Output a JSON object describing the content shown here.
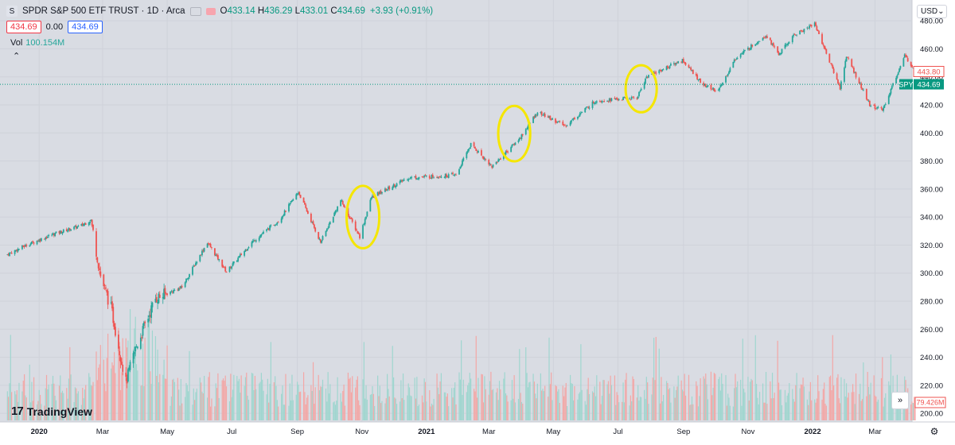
{
  "header": {
    "symbol_icon": "S",
    "title": "SPDR S&P 500 ETF TRUST · 1D · Arca",
    "open_label": "O",
    "open": "433.14",
    "high_label": "H",
    "high": "436.29",
    "low_label": "L",
    "low": "433.01",
    "close_label": "C",
    "close": "434.69",
    "change": "+3.93 (+0.91%)",
    "bid": "434.69",
    "spread": "0.00",
    "ask": "434.69",
    "collapse_icon": "chevron-up-icon"
  },
  "volume": {
    "label": "Vol",
    "value": "100.154M"
  },
  "currency": {
    "label": "USD"
  },
  "branding": {
    "name": "TradingView"
  },
  "controls": {
    "scroll_icon": "double-chevron-right-icon",
    "settings_icon": "gear-icon"
  },
  "colors": {
    "up": "#26a69a",
    "down": "#ef5350",
    "highlight": "#f5e600",
    "background": "#d9dce3",
    "last_price": "#089981"
  },
  "chart_data": {
    "type": "candlestick",
    "symbol": "SPY",
    "interval": "1D",
    "ylim": [
      195,
      488
    ],
    "y_ticks": [
      200,
      220,
      240,
      260,
      280,
      300,
      320,
      340,
      360,
      380,
      400,
      420,
      440,
      460,
      480
    ],
    "x_tick_labels": [
      "2020",
      "Mar",
      "May",
      "Jul",
      "Sep",
      "Nov",
      "2021",
      "Mar",
      "May",
      "Jul",
      "Sep",
      "Nov",
      "2022",
      "Mar"
    ],
    "x_tick_dates": [
      "2020-01-01",
      "2020-03-01",
      "2020-05-01",
      "2020-07-01",
      "2020-09-01",
      "2020-11-01",
      "2021-01-01",
      "2021-03-01",
      "2021-05-01",
      "2021-07-01",
      "2021-09-01",
      "2021-11-01",
      "2022-01-01",
      "2022-03-01"
    ],
    "date_range": [
      "2019-12-01",
      "2022-04-08"
    ],
    "price_path": [
      {
        "date": "2019-12-01",
        "price": 313
      },
      {
        "date": "2019-12-20",
        "price": 320
      },
      {
        "date": "2020-01-15",
        "price": 328
      },
      {
        "date": "2020-02-10",
        "price": 334
      },
      {
        "date": "2020-02-19",
        "price": 338
      },
      {
        "date": "2020-02-28",
        "price": 298
      },
      {
        "date": "2020-03-09",
        "price": 275
      },
      {
        "date": "2020-03-23",
        "price": 222
      },
      {
        "date": "2020-04-01",
        "price": 246
      },
      {
        "date": "2020-04-20",
        "price": 282
      },
      {
        "date": "2020-05-15",
        "price": 290
      },
      {
        "date": "2020-06-08",
        "price": 322
      },
      {
        "date": "2020-06-26",
        "price": 301
      },
      {
        "date": "2020-07-20",
        "price": 322
      },
      {
        "date": "2020-08-15",
        "price": 338
      },
      {
        "date": "2020-09-02",
        "price": 358
      },
      {
        "date": "2020-09-23",
        "price": 322
      },
      {
        "date": "2020-10-12",
        "price": 352
      },
      {
        "date": "2020-10-30",
        "price": 326
      },
      {
        "date": "2020-11-10",
        "price": 354
      },
      {
        "date": "2020-12-15",
        "price": 368
      },
      {
        "date": "2021-01-29",
        "price": 370
      },
      {
        "date": "2021-02-12",
        "price": 392
      },
      {
        "date": "2021-03-04",
        "price": 376
      },
      {
        "date": "2021-03-30",
        "price": 396
      },
      {
        "date": "2021-04-16",
        "price": 415
      },
      {
        "date": "2021-05-12",
        "price": 405
      },
      {
        "date": "2021-06-10",
        "price": 423
      },
      {
        "date": "2021-07-19",
        "price": 425
      },
      {
        "date": "2021-07-28",
        "price": 440
      },
      {
        "date": "2021-08-31",
        "price": 452
      },
      {
        "date": "2021-09-20",
        "price": 434
      },
      {
        "date": "2021-10-04",
        "price": 430
      },
      {
        "date": "2021-10-20",
        "price": 453
      },
      {
        "date": "2021-11-18",
        "price": 470
      },
      {
        "date": "2021-11-30",
        "price": 456
      },
      {
        "date": "2021-12-15",
        "price": 470
      },
      {
        "date": "2022-01-03",
        "price": 478
      },
      {
        "date": "2022-01-27",
        "price": 432
      },
      {
        "date": "2022-02-02",
        "price": 455
      },
      {
        "date": "2022-02-24",
        "price": 420
      },
      {
        "date": "2022-03-08",
        "price": 416
      },
      {
        "date": "2022-03-29",
        "price": 455
      },
      {
        "date": "2022-04-08",
        "price": 445
      }
    ],
    "price_labels": [
      {
        "label": "",
        "value": "443.80",
        "price": 443.8,
        "color": "#ef5350"
      },
      {
        "label": "SPY",
        "value": "434.69",
        "price": 434.69,
        "color": "#089981"
      }
    ],
    "last_price": 434.69,
    "volume_last": "79.426M",
    "highlight_ellipses": [
      {
        "center_date": "2020-11-02",
        "price_low": 320,
        "price_high": 360
      },
      {
        "center_date": "2021-03-25",
        "price_low": 382,
        "price_high": 417
      },
      {
        "center_date": "2021-07-23",
        "price_low": 417,
        "price_high": 446
      }
    ],
    "grid": true
  }
}
